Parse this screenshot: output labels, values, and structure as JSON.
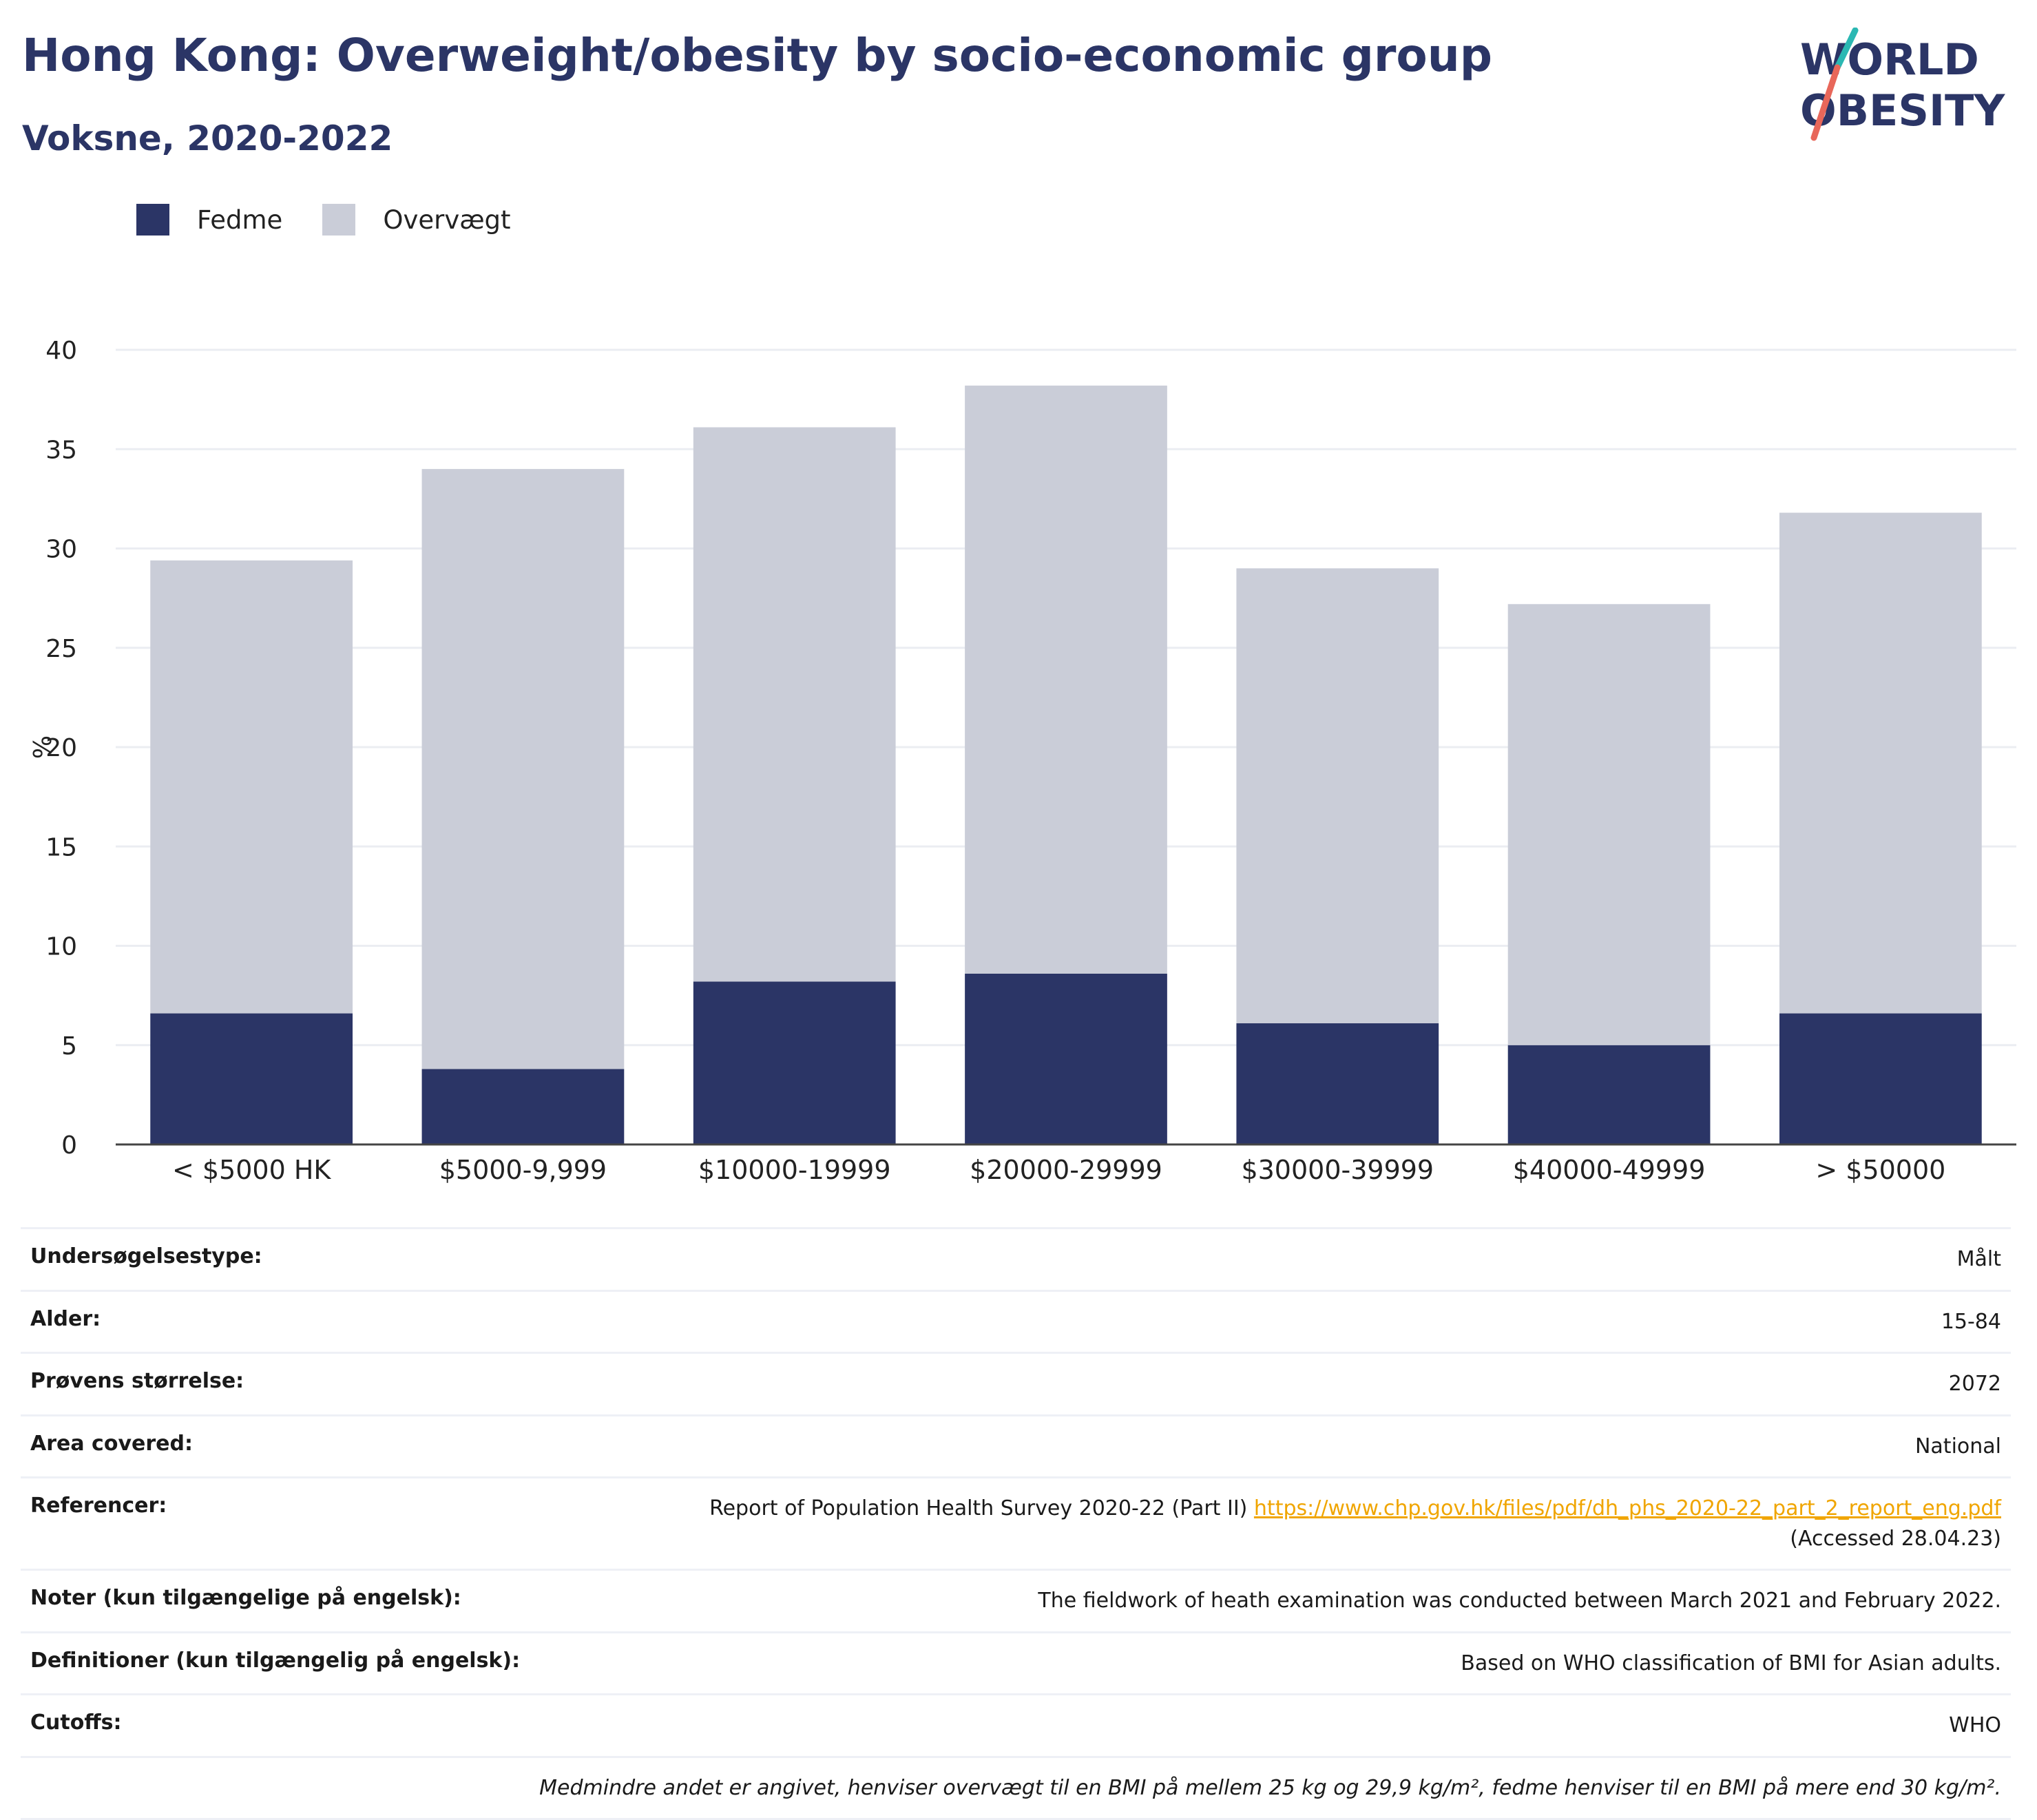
{
  "header": {
    "title": "Hong Kong: Overweight/obesity by socio-economic group",
    "subtitle": "Voksne, 2020-2022"
  },
  "logo": {
    "line1": "WORLD",
    "line2": "OBESITY"
  },
  "colors": {
    "obesity": "#2b3566",
    "overweight": "#cacdd8",
    "title": "#2b3566",
    "link": "#f0a500"
  },
  "chart_data": {
    "type": "bar",
    "stacked": true,
    "categories": [
      "< $5000 HK",
      "$5000-9,999",
      "$10000-19999",
      "$20000-29999",
      "$30000-39999",
      "$40000-49999",
      "> $50000"
    ],
    "series": [
      {
        "name": "Fedme",
        "values": [
          6.6,
          3.8,
          8.2,
          8.6,
          6.1,
          5.0,
          6.6
        ]
      },
      {
        "name": "Overvægt",
        "values": [
          22.8,
          30.2,
          27.9,
          29.6,
          22.9,
          22.2,
          25.2
        ]
      }
    ],
    "ylabel": "%",
    "ylim": [
      0,
      40
    ],
    "yticks": [
      0,
      5,
      10,
      15,
      20,
      25,
      30,
      35,
      40
    ],
    "grid": true,
    "legend": "top-left"
  },
  "meta": {
    "rows": [
      {
        "label": "Undersøgelsestype:",
        "value": "Målt"
      },
      {
        "label": "Alder:",
        "value": "15-84"
      },
      {
        "label": "Prøvens størrelse:",
        "value": "2072"
      },
      {
        "label": "Area covered:",
        "value": "National"
      },
      {
        "label": "Referencer:",
        "value": "Report of Population Health Survey 2020-22 (Part II)",
        "link": "https://www.chp.gov.hk/files/pdf/dh_phs_2020-22_part_2_report_eng.pdf",
        "extra": "(Accessed 28.04.23)"
      },
      {
        "label": "Noter (kun tilgængelige på engelsk):",
        "value": "The fieldwork of heath examination was conducted between March 2021 and February 2022."
      },
      {
        "label": "Definitioner (kun tilgængelig på engelsk):",
        "value": "Based on WHO classification of BMI for Asian adults."
      },
      {
        "label": "Cutoffs:",
        "value": "WHO"
      }
    ],
    "footnote": "Medmindre andet er angivet, henviser overvægt til en BMI på mellem 25 kg og 29,9 kg/m², fedme henviser til en BMI på mere end 30 kg/m²."
  }
}
